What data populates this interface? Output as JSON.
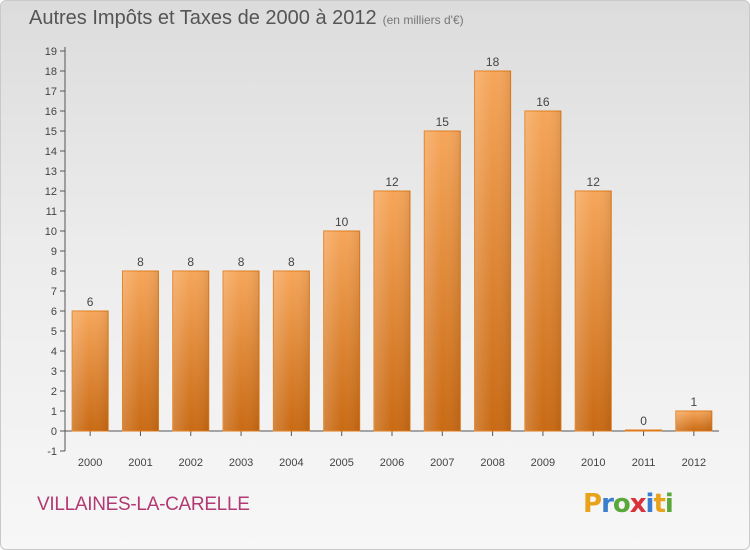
{
  "header": {
    "title": "Autres Impôts et Taxes de 2000 à 2012",
    "subtitle": "(en milliers d'€)"
  },
  "footer": {
    "commune": "VILLAINES-LA-CARELLE",
    "logo_letters": [
      "P",
      "r",
      "o",
      "x",
      "i",
      "t",
      "i"
    ],
    "logo_colors": [
      "#e8a21c",
      "#3a7fcf",
      "#5aa83c",
      "#d9323a",
      "#3a7fcf",
      "#e8a21c",
      "#5aa83c"
    ]
  },
  "chart_data": {
    "type": "bar",
    "categories": [
      "2000",
      "2001",
      "2002",
      "2003",
      "2004",
      "2005",
      "2006",
      "2007",
      "2008",
      "2009",
      "2010",
      "2011",
      "2012"
    ],
    "values": [
      6,
      8,
      8,
      8,
      8,
      10,
      12,
      15,
      18,
      16,
      12,
      0,
      1
    ],
    "value_labels": [
      "6",
      "8",
      "8",
      "8",
      "8",
      "10",
      "12",
      "15",
      "18",
      "16",
      "12",
      "0",
      "1"
    ],
    "yticks": [
      "-1",
      "0",
      "1",
      "2",
      "3",
      "4",
      "5",
      "6",
      "7",
      "8",
      "9",
      "10",
      "11",
      "12",
      "13",
      "14",
      "15",
      "16",
      "17",
      "18",
      "19"
    ],
    "ylim": [
      -1,
      19
    ],
    "bar_color": "#f08c2a",
    "grid": false,
    "legend": "none"
  }
}
